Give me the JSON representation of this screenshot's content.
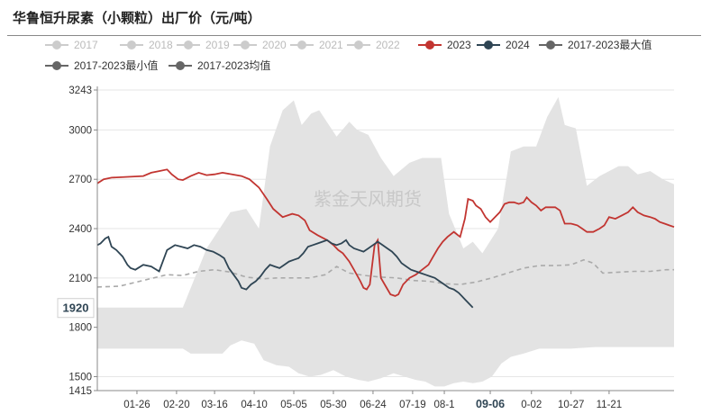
{
  "title": "华鲁恒升尿素（小颗粒）出厂价（元/吨）",
  "colors": {
    "y2023": "#c23531",
    "y2024": "#2f4554",
    "inactive": "#cccccc",
    "range": "#e3e3e3",
    "avg": "#aaaaaa",
    "minmax": "#666666"
  },
  "chart_data": {
    "type": "line",
    "title": "华鲁恒升尿素（小颗粒）出厂价（元/吨）",
    "xlabel": "",
    "ylabel": "",
    "ylim": [
      1415,
      3243
    ],
    "y_ticks": [
      "3243",
      "3000",
      "2700",
      "2400",
      "2100",
      "1800",
      "1500",
      "1415"
    ],
    "x_ticks": [
      "01-26",
      "02-20",
      "03-16",
      "04-10",
      "05-05",
      "05-30",
      "06-24",
      "07-19",
      "08-1",
      "09-06",
      "0-02",
      "10-27",
      "11-21"
    ],
    "highlight_x": "09-06",
    "highlight_y": "1920",
    "legend": [
      {
        "name": "2017",
        "active": false
      },
      {
        "name": "2018",
        "active": false
      },
      {
        "name": "2019",
        "active": false
      },
      {
        "name": "2020",
        "active": false
      },
      {
        "name": "2021",
        "active": false
      },
      {
        "name": "2022",
        "active": false
      },
      {
        "name": "2023",
        "active": true
      },
      {
        "name": "2024",
        "active": true
      },
      {
        "name": "2017-2023最大值",
        "active": true
      },
      {
        "name": "2017-2023最小值",
        "active": true
      },
      {
        "name": "2017-2023均值",
        "active": true
      }
    ],
    "legend_position": "top",
    "watermark": "紫金天风期货",
    "day_range": [
      1,
      365
    ],
    "series": [
      {
        "name": "2017-2023最大值",
        "points": [
          [
            1,
            1920
          ],
          [
            55,
            1920
          ],
          [
            70,
            2280
          ],
          [
            85,
            2500
          ],
          [
            95,
            2520
          ],
          [
            103,
            2400
          ],
          [
            110,
            2900
          ],
          [
            118,
            3120
          ],
          [
            125,
            3180
          ],
          [
            130,
            3030
          ],
          [
            136,
            3100
          ],
          [
            141,
            3120
          ],
          [
            152,
            2960
          ],
          [
            160,
            3050
          ],
          [
            165,
            3000
          ],
          [
            172,
            2970
          ],
          [
            180,
            2830
          ],
          [
            188,
            2720
          ],
          [
            198,
            2800
          ],
          [
            206,
            2830
          ],
          [
            218,
            2830
          ],
          [
            223,
            2490
          ],
          [
            232,
            2280
          ],
          [
            238,
            2320
          ],
          [
            244,
            2250
          ],
          [
            254,
            2400
          ],
          [
            262,
            2870
          ],
          [
            270,
            2900
          ],
          [
            278,
            2900
          ],
          [
            285,
            3080
          ],
          [
            292,
            3200
          ],
          [
            296,
            3030
          ],
          [
            303,
            3010
          ],
          [
            310,
            2660
          ],
          [
            318,
            2720
          ],
          [
            330,
            2780
          ],
          [
            336,
            2780
          ],
          [
            342,
            2730
          ],
          [
            350,
            2750
          ],
          [
            358,
            2700
          ],
          [
            365,
            2670
          ]
        ]
      },
      {
        "name": "2017-2023最小值",
        "points": [
          [
            1,
            1670
          ],
          [
            55,
            1670
          ],
          [
            60,
            1640
          ],
          [
            80,
            1640
          ],
          [
            85,
            1690
          ],
          [
            92,
            1720
          ],
          [
            100,
            1700
          ],
          [
            106,
            1600
          ],
          [
            114,
            1570
          ],
          [
            122,
            1560
          ],
          [
            128,
            1520
          ],
          [
            135,
            1500
          ],
          [
            142,
            1510
          ],
          [
            150,
            1540
          ],
          [
            158,
            1500
          ],
          [
            166,
            1480
          ],
          [
            172,
            1470
          ],
          [
            180,
            1490
          ],
          [
            188,
            1520
          ],
          [
            195,
            1500
          ],
          [
            202,
            1480
          ],
          [
            208,
            1470
          ],
          [
            214,
            1440
          ],
          [
            220,
            1440
          ],
          [
            226,
            1460
          ],
          [
            232,
            1470
          ],
          [
            238,
            1460
          ],
          [
            244,
            1470
          ],
          [
            250,
            1500
          ],
          [
            256,
            1580
          ],
          [
            262,
            1620
          ],
          [
            270,
            1640
          ],
          [
            280,
            1670
          ],
          [
            300,
            1670
          ],
          [
            315,
            1680
          ],
          [
            365,
            1680
          ]
        ]
      },
      {
        "name": "2017-2023均值",
        "points": [
          [
            1,
            2045
          ],
          [
            15,
            2050
          ],
          [
            30,
            2085
          ],
          [
            45,
            2120
          ],
          [
            55,
            2115
          ],
          [
            65,
            2140
          ],
          [
            75,
            2150
          ],
          [
            85,
            2135
          ],
          [
            95,
            2105
          ],
          [
            105,
            2095
          ],
          [
            115,
            2100
          ],
          [
            125,
            2100
          ],
          [
            135,
            2100
          ],
          [
            145,
            2120
          ],
          [
            152,
            2170
          ],
          [
            160,
            2130
          ],
          [
            170,
            2115
          ],
          [
            180,
            2105
          ],
          [
            190,
            2100
          ],
          [
            200,
            2085
          ],
          [
            210,
            2080
          ],
          [
            220,
            2065
          ],
          [
            230,
            2060
          ],
          [
            240,
            2075
          ],
          [
            250,
            2100
          ],
          [
            260,
            2130
          ],
          [
            270,
            2160
          ],
          [
            280,
            2175
          ],
          [
            290,
            2175
          ],
          [
            300,
            2180
          ],
          [
            308,
            2210
          ],
          [
            314,
            2190
          ],
          [
            320,
            2130
          ],
          [
            330,
            2135
          ],
          [
            340,
            2140
          ],
          [
            350,
            2140
          ],
          [
            360,
            2150
          ],
          [
            365,
            2150
          ]
        ]
      },
      {
        "name": "2023",
        "points": [
          [
            1,
            2675
          ],
          [
            5,
            2700
          ],
          [
            10,
            2710
          ],
          [
            30,
            2720
          ],
          [
            35,
            2740
          ],
          [
            40,
            2750
          ],
          [
            45,
            2760
          ],
          [
            48,
            2730
          ],
          [
            52,
            2700
          ],
          [
            55,
            2695
          ],
          [
            60,
            2720
          ],
          [
            65,
            2740
          ],
          [
            70,
            2725
          ],
          [
            75,
            2730
          ],
          [
            80,
            2740
          ],
          [
            86,
            2730
          ],
          [
            92,
            2720
          ],
          [
            97,
            2700
          ],
          [
            103,
            2650
          ],
          [
            108,
            2580
          ],
          [
            112,
            2520
          ],
          [
            118,
            2470
          ],
          [
            124,
            2490
          ],
          [
            128,
            2480
          ],
          [
            132,
            2450
          ],
          [
            135,
            2390
          ],
          [
            140,
            2360
          ],
          [
            146,
            2330
          ],
          [
            150,
            2300
          ],
          [
            153,
            2270
          ],
          [
            156,
            2250
          ],
          [
            160,
            2200
          ],
          [
            163,
            2150
          ],
          [
            167,
            2080
          ],
          [
            169,
            2040
          ],
          [
            171,
            2030
          ],
          [
            173,
            2060
          ],
          [
            176,
            2300
          ],
          [
            178,
            2330
          ],
          [
            180,
            2100
          ],
          [
            183,
            2050
          ],
          [
            186,
            2000
          ],
          [
            189,
            1990
          ],
          [
            191,
            2000
          ],
          [
            194,
            2060
          ],
          [
            198,
            2100
          ],
          [
            202,
            2120
          ],
          [
            206,
            2150
          ],
          [
            210,
            2180
          ],
          [
            213,
            2230
          ],
          [
            216,
            2280
          ],
          [
            219,
            2320
          ],
          [
            222,
            2350
          ],
          [
            226,
            2380
          ],
          [
            230,
            2350
          ],
          [
            233,
            2460
          ],
          [
            235,
            2580
          ],
          [
            238,
            2570
          ],
          [
            240,
            2540
          ],
          [
            243,
            2520
          ],
          [
            246,
            2470
          ],
          [
            249,
            2440
          ],
          [
            252,
            2470
          ],
          [
            255,
            2500
          ],
          [
            258,
            2550
          ],
          [
            261,
            2560
          ],
          [
            264,
            2560
          ],
          [
            267,
            2550
          ],
          [
            270,
            2560
          ],
          [
            272,
            2590
          ],
          [
            275,
            2560
          ],
          [
            278,
            2540
          ],
          [
            281,
            2510
          ],
          [
            284,
            2530
          ],
          [
            287,
            2530
          ],
          [
            290,
            2530
          ],
          [
            293,
            2510
          ],
          [
            296,
            2430
          ],
          [
            300,
            2430
          ],
          [
            304,
            2420
          ],
          [
            307,
            2400
          ],
          [
            310,
            2380
          ],
          [
            314,
            2380
          ],
          [
            318,
            2400
          ],
          [
            321,
            2420
          ],
          [
            324,
            2470
          ],
          [
            328,
            2460
          ],
          [
            332,
            2480
          ],
          [
            336,
            2500
          ],
          [
            339,
            2530
          ],
          [
            342,
            2500
          ],
          [
            346,
            2480
          ],
          [
            350,
            2470
          ],
          [
            353,
            2460
          ],
          [
            356,
            2440
          ],
          [
            359,
            2430
          ],
          [
            362,
            2420
          ],
          [
            365,
            2410
          ]
        ]
      },
      {
        "name": "2024",
        "points": [
          [
            1,
            2300
          ],
          [
            3,
            2310
          ],
          [
            6,
            2340
          ],
          [
            8,
            2350
          ],
          [
            10,
            2290
          ],
          [
            13,
            2270
          ],
          [
            17,
            2230
          ],
          [
            20,
            2180
          ],
          [
            22,
            2160
          ],
          [
            25,
            2150
          ],
          [
            30,
            2180
          ],
          [
            35,
            2170
          ],
          [
            40,
            2140
          ],
          [
            45,
            2270
          ],
          [
            50,
            2300
          ],
          [
            54,
            2290
          ],
          [
            58,
            2280
          ],
          [
            62,
            2300
          ],
          [
            66,
            2290
          ],
          [
            70,
            2270
          ],
          [
            74,
            2260
          ],
          [
            78,
            2240
          ],
          [
            81,
            2220
          ],
          [
            84,
            2160
          ],
          [
            87,
            2120
          ],
          [
            90,
            2080
          ],
          [
            92,
            2040
          ],
          [
            95,
            2030
          ],
          [
            98,
            2060
          ],
          [
            101,
            2080
          ],
          [
            104,
            2110
          ],
          [
            107,
            2150
          ],
          [
            110,
            2180
          ],
          [
            113,
            2170
          ],
          [
            116,
            2160
          ],
          [
            119,
            2180
          ],
          [
            122,
            2200
          ],
          [
            125,
            2210
          ],
          [
            128,
            2220
          ],
          [
            131,
            2250
          ],
          [
            134,
            2290
          ],
          [
            137,
            2300
          ],
          [
            140,
            2310
          ],
          [
            143,
            2320
          ],
          [
            146,
            2330
          ],
          [
            149,
            2310
          ],
          [
            152,
            2300
          ],
          [
            155,
            2310
          ],
          [
            158,
            2330
          ],
          [
            160,
            2300
          ],
          [
            163,
            2280
          ],
          [
            166,
            2270
          ],
          [
            169,
            2260
          ],
          [
            172,
            2280
          ],
          [
            175,
            2300
          ],
          [
            178,
            2320
          ],
          [
            181,
            2300
          ],
          [
            184,
            2280
          ],
          [
            187,
            2260
          ],
          [
            190,
            2230
          ],
          [
            193,
            2190
          ],
          [
            196,
            2170
          ],
          [
            199,
            2150
          ],
          [
            202,
            2140
          ],
          [
            205,
            2130
          ],
          [
            208,
            2120
          ],
          [
            211,
            2110
          ],
          [
            214,
            2100
          ],
          [
            217,
            2080
          ],
          [
            220,
            2060
          ],
          [
            223,
            2040
          ],
          [
            226,
            2030
          ],
          [
            229,
            2010
          ],
          [
            231,
            1990
          ],
          [
            233,
            1970
          ],
          [
            235,
            1950
          ],
          [
            237,
            1930
          ],
          [
            238,
            1920
          ]
        ]
      }
    ]
  }
}
